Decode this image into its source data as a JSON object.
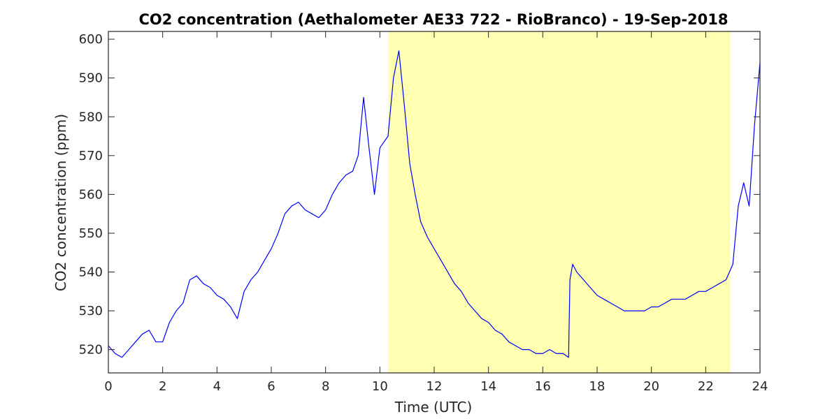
{
  "chart_data": {
    "type": "line",
    "title": "CO2 concentration (Aethalometer AE33 722 - RioBranco) - 19-Sep-2018",
    "xlabel": "Time (UTC)",
    "ylabel": "CO2 concentration (ppm)",
    "xlim": [
      0,
      24
    ],
    "ylim": [
      514,
      602
    ],
    "xticks": [
      0,
      2,
      4,
      6,
      8,
      10,
      12,
      14,
      16,
      18,
      20,
      22,
      24
    ],
    "yticks": [
      520,
      530,
      540,
      550,
      560,
      570,
      580,
      590,
      600
    ],
    "grid": false,
    "colors": {
      "line": "#0000ff",
      "shaded_region": "#ffffb2",
      "axes": "#262626"
    },
    "shaded_x_range": [
      10.3,
      22.9
    ],
    "series": [
      {
        "x": [
          0,
          0.25,
          0.5,
          0.75,
          1.0,
          1.25,
          1.5,
          1.75,
          2.0,
          2.25,
          2.5,
          2.75,
          3.0,
          3.25,
          3.5,
          3.75,
          4.0,
          4.25,
          4.5,
          4.75,
          5.0,
          5.25,
          5.5,
          5.75,
          6.0,
          6.25,
          6.5,
          6.75,
          7.0,
          7.25,
          7.5,
          7.75,
          8.0,
          8.25,
          8.5,
          8.75,
          9.0,
          9.2,
          9.4,
          9.6,
          9.8,
          10.0,
          10.3,
          10.5,
          10.7,
          10.9,
          11.1,
          11.3,
          11.5,
          11.75,
          12.0,
          12.25,
          12.5,
          12.75,
          13.0,
          13.25,
          13.5,
          13.75,
          14.0,
          14.25,
          14.5,
          14.75,
          15.0,
          15.25,
          15.5,
          15.75,
          16.0,
          16.25,
          16.5,
          16.75,
          16.95,
          17.0,
          17.1,
          17.25,
          17.5,
          17.75,
          18.0,
          18.25,
          18.5,
          18.75,
          19.0,
          19.25,
          19.5,
          19.75,
          20.0,
          20.25,
          20.5,
          20.75,
          21.0,
          21.25,
          21.5,
          21.75,
          22.0,
          22.25,
          22.5,
          22.75,
          23.0,
          23.2,
          23.4,
          23.6,
          23.8,
          24.0
        ],
        "y": [
          521,
          519,
          518,
          520,
          522,
          524,
          525,
          522,
          522,
          527,
          530,
          532,
          538,
          539,
          537,
          536,
          534,
          533,
          531,
          528,
          535,
          538,
          540,
          543,
          546,
          550,
          555,
          557,
          558,
          556,
          555,
          554,
          556,
          560,
          563,
          565,
          566,
          570,
          585,
          572,
          560,
          572,
          575,
          590,
          597,
          583,
          568,
          560,
          553,
          549,
          546,
          543,
          540,
          537,
          535,
          532,
          530,
          528,
          527,
          525,
          524,
          522,
          521,
          520,
          520,
          519,
          519,
          520,
          519,
          519,
          518,
          538,
          542,
          540,
          538,
          536,
          534,
          533,
          532,
          531,
          530,
          530,
          530,
          530,
          531,
          531,
          532,
          533,
          533,
          533,
          534,
          535,
          535,
          536,
          537,
          538,
          542,
          557,
          563,
          557,
          578,
          594
        ]
      }
    ]
  }
}
